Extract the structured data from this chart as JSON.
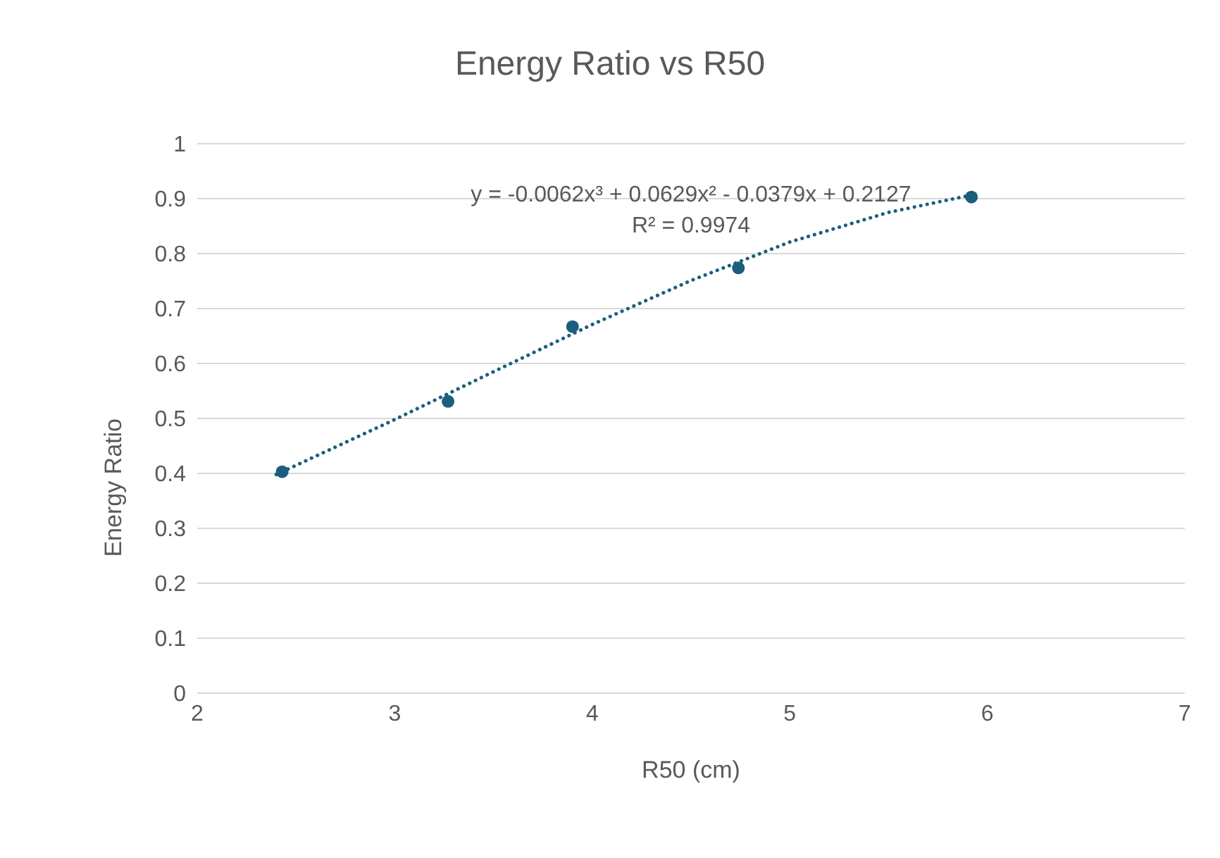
{
  "chart_data": {
    "type": "scatter",
    "title": "Energy Ratio vs R50",
    "xlabel": "R50 (cm)",
    "ylabel": "Energy Ratio",
    "xlim": [
      2,
      7
    ],
    "xticks": [
      2,
      3,
      4,
      5,
      6,
      7
    ],
    "ylim": [
      0,
      1
    ],
    "yticks": [
      0,
      0.1,
      0.2,
      0.3,
      0.4,
      0.5,
      0.6,
      0.7,
      0.8,
      0.9,
      1
    ],
    "grid": "y",
    "legend": false,
    "series": [
      {
        "color": "#1b5e7e",
        "marker": "circle",
        "x": [
          2.43,
          3.27,
          3.9,
          4.74,
          5.92
        ],
        "values": [
          0.403,
          0.531,
          0.667,
          0.774,
          0.903
        ]
      },
      {
        "type": "line",
        "color": "#1b5e7e",
        "line_style": "dotted",
        "marker": "none",
        "x": [
          2.4,
          3,
          3.5,
          4,
          4.5,
          5,
          5.5,
          5.9
        ],
        "values": [
          0.398,
          0.498,
          0.585,
          0.671,
          0.751,
          0.821,
          0.875,
          0.905
        ]
      }
    ],
    "annotations": [
      "y = -0.0062x³ + 0.0629x² - 0.0379x + 0.2127",
      "R² = 0.9974"
    ]
  }
}
